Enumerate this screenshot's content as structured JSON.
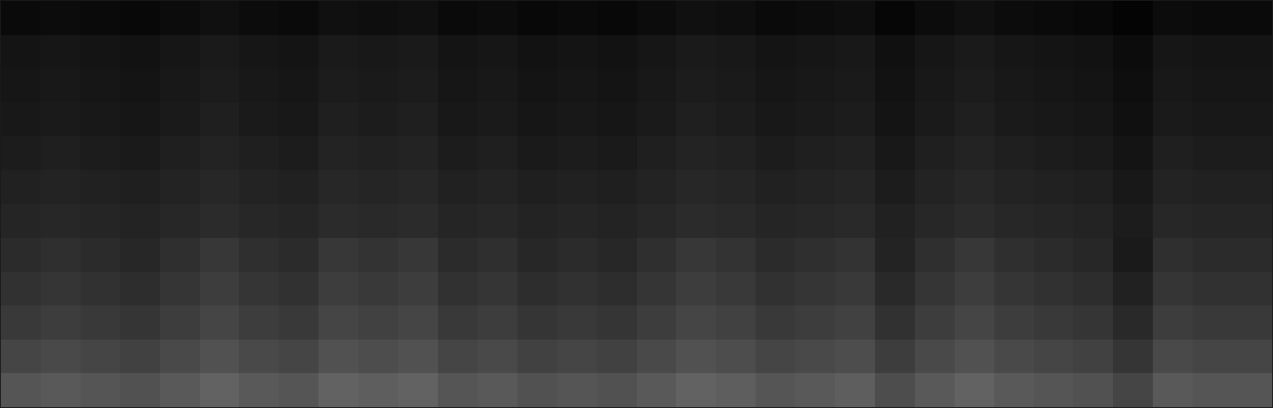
{
  "chart_data": {
    "type": "heatmap",
    "cells": [
      [
        42,
        44,
        42,
        40,
        44,
        48,
        44,
        42,
        48,
        46,
        48,
        42,
        44,
        40,
        42,
        40,
        44,
        48,
        46,
        42,
        44,
        46,
        38,
        44,
        48,
        44,
        42,
        40,
        34,
        44,
        42,
        42
      ],
      [
        34,
        36,
        34,
        32,
        36,
        40,
        36,
        34,
        40,
        38,
        40,
        34,
        36,
        32,
        34,
        32,
        36,
        40,
        38,
        34,
        36,
        38,
        30,
        36,
        40,
        36,
        34,
        32,
        26,
        36,
        34,
        34
      ],
      [
        28,
        30,
        28,
        26,
        30,
        34,
        30,
        28,
        34,
        32,
        34,
        28,
        30,
        26,
        28,
        26,
        30,
        34,
        32,
        28,
        30,
        32,
        24,
        30,
        34,
        30,
        28,
        26,
        20,
        30,
        28,
        28
      ],
      [
        24,
        26,
        24,
        22,
        26,
        30,
        26,
        24,
        30,
        28,
        30,
        24,
        26,
        22,
        24,
        22,
        26,
        30,
        28,
        24,
        26,
        28,
        20,
        26,
        30,
        26,
        24,
        22,
        16,
        26,
        24,
        24
      ],
      [
        21,
        23,
        21,
        19,
        23,
        27,
        23,
        21,
        27,
        25,
        27,
        21,
        23,
        19,
        21,
        19,
        23,
        27,
        25,
        21,
        23,
        25,
        17,
        23,
        27,
        23,
        21,
        19,
        13,
        23,
        21,
        21
      ],
      [
        18,
        19,
        18,
        17,
        19,
        21,
        19,
        18,
        21,
        20,
        21,
        18,
        19,
        17,
        18,
        17,
        19,
        21,
        20,
        18,
        19,
        20,
        16,
        19,
        21,
        19,
        18,
        17,
        14,
        19,
        18,
        18
      ],
      [
        16,
        17,
        16,
        15,
        17,
        19,
        17,
        16,
        19,
        18,
        19,
        16,
        17,
        15,
        16,
        15,
        17,
        19,
        18,
        16,
        17,
        18,
        14,
        17,
        19,
        17,
        16,
        15,
        12,
        17,
        16,
        16
      ],
      [
        14,
        15,
        14,
        13,
        15,
        17,
        15,
        14,
        17,
        16,
        17,
        14,
        15,
        13,
        14,
        13,
        15,
        17,
        16,
        14,
        15,
        16,
        12,
        15,
        17,
        15,
        14,
        13,
        10,
        15,
        14,
        14
      ],
      [
        12,
        13,
        12,
        11,
        13,
        15,
        13,
        12,
        15,
        14,
        15,
        12,
        13,
        11,
        12,
        11,
        13,
        15,
        14,
        12,
        13,
        14,
        10,
        13,
        15,
        13,
        12,
        11,
        8,
        13,
        12,
        12
      ],
      [
        11,
        12,
        11,
        10,
        12,
        14,
        12,
        11,
        14,
        13,
        14,
        11,
        12,
        10,
        11,
        10,
        12,
        14,
        13,
        11,
        12,
        13,
        9,
        12,
        14,
        12,
        11,
        10,
        7,
        12,
        11,
        11
      ],
      [
        10,
        11,
        10,
        9,
        11,
        13,
        11,
        10,
        13,
        12,
        13,
        10,
        11,
        9,
        10,
        9,
        11,
        13,
        12,
        10,
        11,
        12,
        8,
        11,
        13,
        11,
        10,
        9,
        6,
        11,
        10,
        10
      ],
      [
        5,
        6,
        5,
        4,
        6,
        8,
        6,
        5,
        8,
        7,
        8,
        5,
        6,
        4,
        5,
        4,
        6,
        8,
        7,
        5,
        6,
        7,
        3,
        6,
        8,
        6,
        5,
        4,
        2,
        6,
        5,
        5
      ]
    ],
    "zlim": [
      0,
      120
    ],
    "xlim": [
      -0.5,
      31.5
    ],
    "ylim": [
      -0.5,
      11.5
    ],
    "tick_labels": false,
    "grid": false
  }
}
